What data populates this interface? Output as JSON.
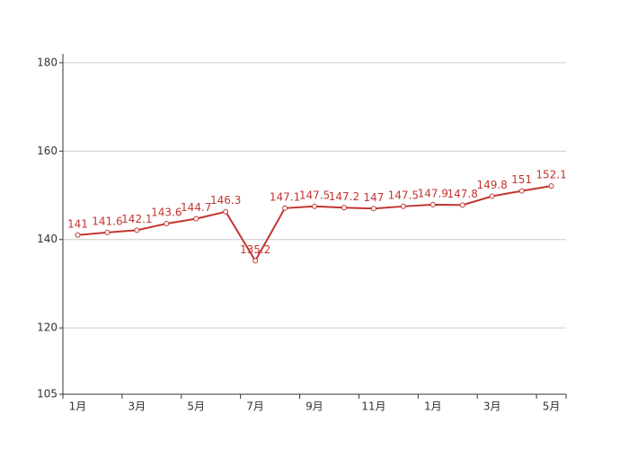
{
  "chart_data": {
    "type": "line",
    "categories": [
      "1月",
      null,
      "3月",
      null,
      "5月",
      null,
      "7月",
      null,
      "9月",
      null,
      "11月",
      null,
      "1月",
      null,
      "3月",
      null,
      "5月"
    ],
    "series": [
      {
        "color": "#c23531",
        "values": [
          141,
          141.6,
          142.1,
          143.6,
          144.7,
          146.3,
          135.2,
          147.1,
          147.5,
          147.2,
          147,
          147.5,
          147.9,
          147.8,
          149.8,
          151,
          152.1
        ]
      }
    ],
    "ylim": [
      105,
      182
    ],
    "yticks": [
      105,
      120,
      140,
      160,
      180
    ],
    "grid": true
  }
}
